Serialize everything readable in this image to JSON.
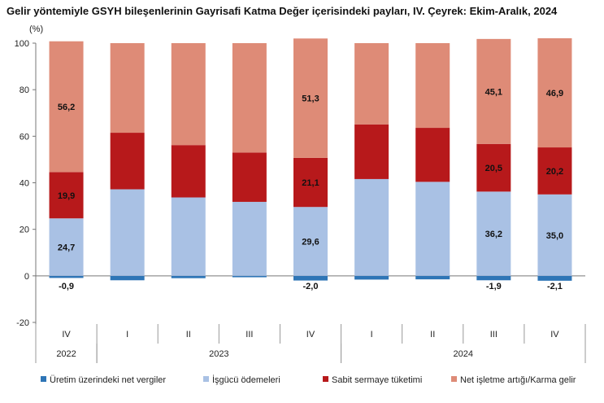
{
  "chart_data": {
    "type": "bar",
    "stacked": true,
    "title": "Gelir yöntemiyle GSYH bileşenlerinin Gayrisafi Katma Değer içerisindeki payları, IV. Çeyrek: Ekim-Aralık, 2024",
    "ylabel": "(%)",
    "ylim": [
      -20,
      100
    ],
    "yticks": [
      -20,
      0,
      20,
      40,
      60,
      80,
      100
    ],
    "quarters": [
      "IV",
      "I",
      "II",
      "III",
      "IV",
      "I",
      "II",
      "III",
      "IV"
    ],
    "years": [
      {
        "label": "2022",
        "start": 0,
        "end": 0
      },
      {
        "label": "2023",
        "start": 1,
        "end": 4
      },
      {
        "label": "2024",
        "start": 5,
        "end": 8
      }
    ],
    "series": [
      {
        "name": "Üretim üzerindeki net vergiler",
        "color": "#2e75b6",
        "values": [
          -0.9,
          -1.9,
          -1.0,
          -0.6,
          -2.0,
          -1.6,
          -1.5,
          -1.9,
          -2.1
        ],
        "labels": [
          "-0,9",
          "",
          "",
          "",
          "-2,0",
          "",
          "",
          "-1,9",
          "-2,1"
        ]
      },
      {
        "name": "İşgücü ödemeleri",
        "color": "#a9c1e4",
        "values": [
          24.7,
          37.2,
          33.7,
          31.8,
          29.6,
          41.6,
          40.4,
          36.2,
          35.0
        ],
        "labels": [
          "24,7",
          "",
          "",
          "",
          "29,6",
          "",
          "",
          "36,2",
          "35,0"
        ]
      },
      {
        "name": "Sabit sermaye tüketimi",
        "color": "#b7191b",
        "values": [
          19.9,
          24.3,
          22.5,
          21.2,
          21.1,
          23.5,
          23.2,
          20.5,
          20.2
        ],
        "labels": [
          "19,9",
          "",
          "",
          "",
          "21,1",
          "",
          "",
          "20,5",
          "20,2"
        ]
      },
      {
        "name": "Net işletme artığı/Karma gelir",
        "color": "#de8b77",
        "values": [
          56.2,
          38.5,
          43.8,
          47.0,
          51.3,
          34.9,
          36.4,
          45.1,
          46.9
        ],
        "labels": [
          "56,2",
          "",
          "",
          "",
          "51,3",
          "",
          "",
          "45,1",
          "46,9"
        ]
      }
    ],
    "grid": false,
    "legend_position": "bottom"
  }
}
